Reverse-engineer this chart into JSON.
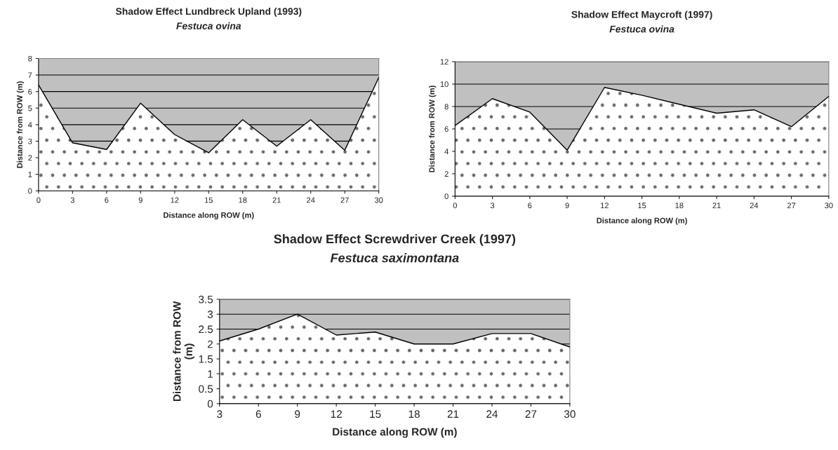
{
  "chart_data": [
    {
      "type": "area",
      "title": "Shadow Effect Lundbreck Upland (1993)",
      "subtitle": "Festuca ovina",
      "xlabel": "Distance along ROW (m)",
      "ylabel": "Distance from ROW (m)",
      "x": [
        0,
        3,
        6,
        9,
        12,
        15,
        18,
        21,
        24,
        27,
        30
      ],
      "series": [
        {
          "color": "#ffffff",
          "values": [
            6.4,
            2.9,
            2.5,
            5.3,
            3.4,
            2.3,
            4.3,
            2.7,
            4.3,
            2.45,
            6.85
          ]
        }
      ],
      "xlim": [
        0,
        30
      ],
      "xticks": [
        0,
        3,
        6,
        9,
        12,
        15,
        18,
        21,
        24,
        27,
        30
      ],
      "ylim": [
        0,
        8
      ],
      "yticks": [
        0,
        1,
        2,
        3,
        4,
        5,
        6,
        7,
        8
      ],
      "grid": "y",
      "legend": false
    },
    {
      "type": "area",
      "title": "Shadow Effect Maycroft (1997)",
      "subtitle": "Festuca ovina",
      "xlabel": "Distance along ROW (m)",
      "ylabel": "Distance from ROW (m)",
      "x": [
        0,
        3,
        6,
        9,
        12,
        15,
        18,
        21,
        24,
        27,
        30
      ],
      "series": [
        {
          "color": "#ffffff",
          "values": [
            6.3,
            8.7,
            7.5,
            4.1,
            9.7,
            9.0,
            8.2,
            7.4,
            7.7,
            6.2,
            8.9
          ]
        }
      ],
      "xlim": [
        0,
        30
      ],
      "xticks": [
        0,
        3,
        6,
        9,
        12,
        15,
        18,
        21,
        24,
        27,
        30
      ],
      "ylim": [
        0,
        12
      ],
      "yticks": [
        0,
        2,
        4,
        6,
        8,
        10,
        12
      ],
      "grid": "y",
      "legend": false
    },
    {
      "type": "area",
      "title": "Shadow Effect Screwdriver Creek (1997)",
      "subtitle": "Festuca saximontana",
      "xlabel": "Distance along ROW (m)",
      "ylabel": "Distance from ROW\n(m)",
      "x": [
        3,
        6,
        9,
        12,
        15,
        18,
        21,
        24,
        27,
        30
      ],
      "series": [
        {
          "color": "#ffffff",
          "values": [
            2.1,
            2.5,
            3.0,
            2.3,
            2.4,
            2.0,
            2.0,
            2.35,
            2.35,
            1.9
          ]
        }
      ],
      "xlim": [
        3,
        30
      ],
      "xticks": [
        3,
        6,
        9,
        12,
        15,
        18,
        21,
        24,
        27,
        30
      ],
      "ylim": [
        0,
        3.5
      ],
      "yticks": [
        0,
        0.5,
        1,
        1.5,
        2,
        2.5,
        3,
        3.5
      ],
      "grid": "y",
      "legend": false
    }
  ]
}
